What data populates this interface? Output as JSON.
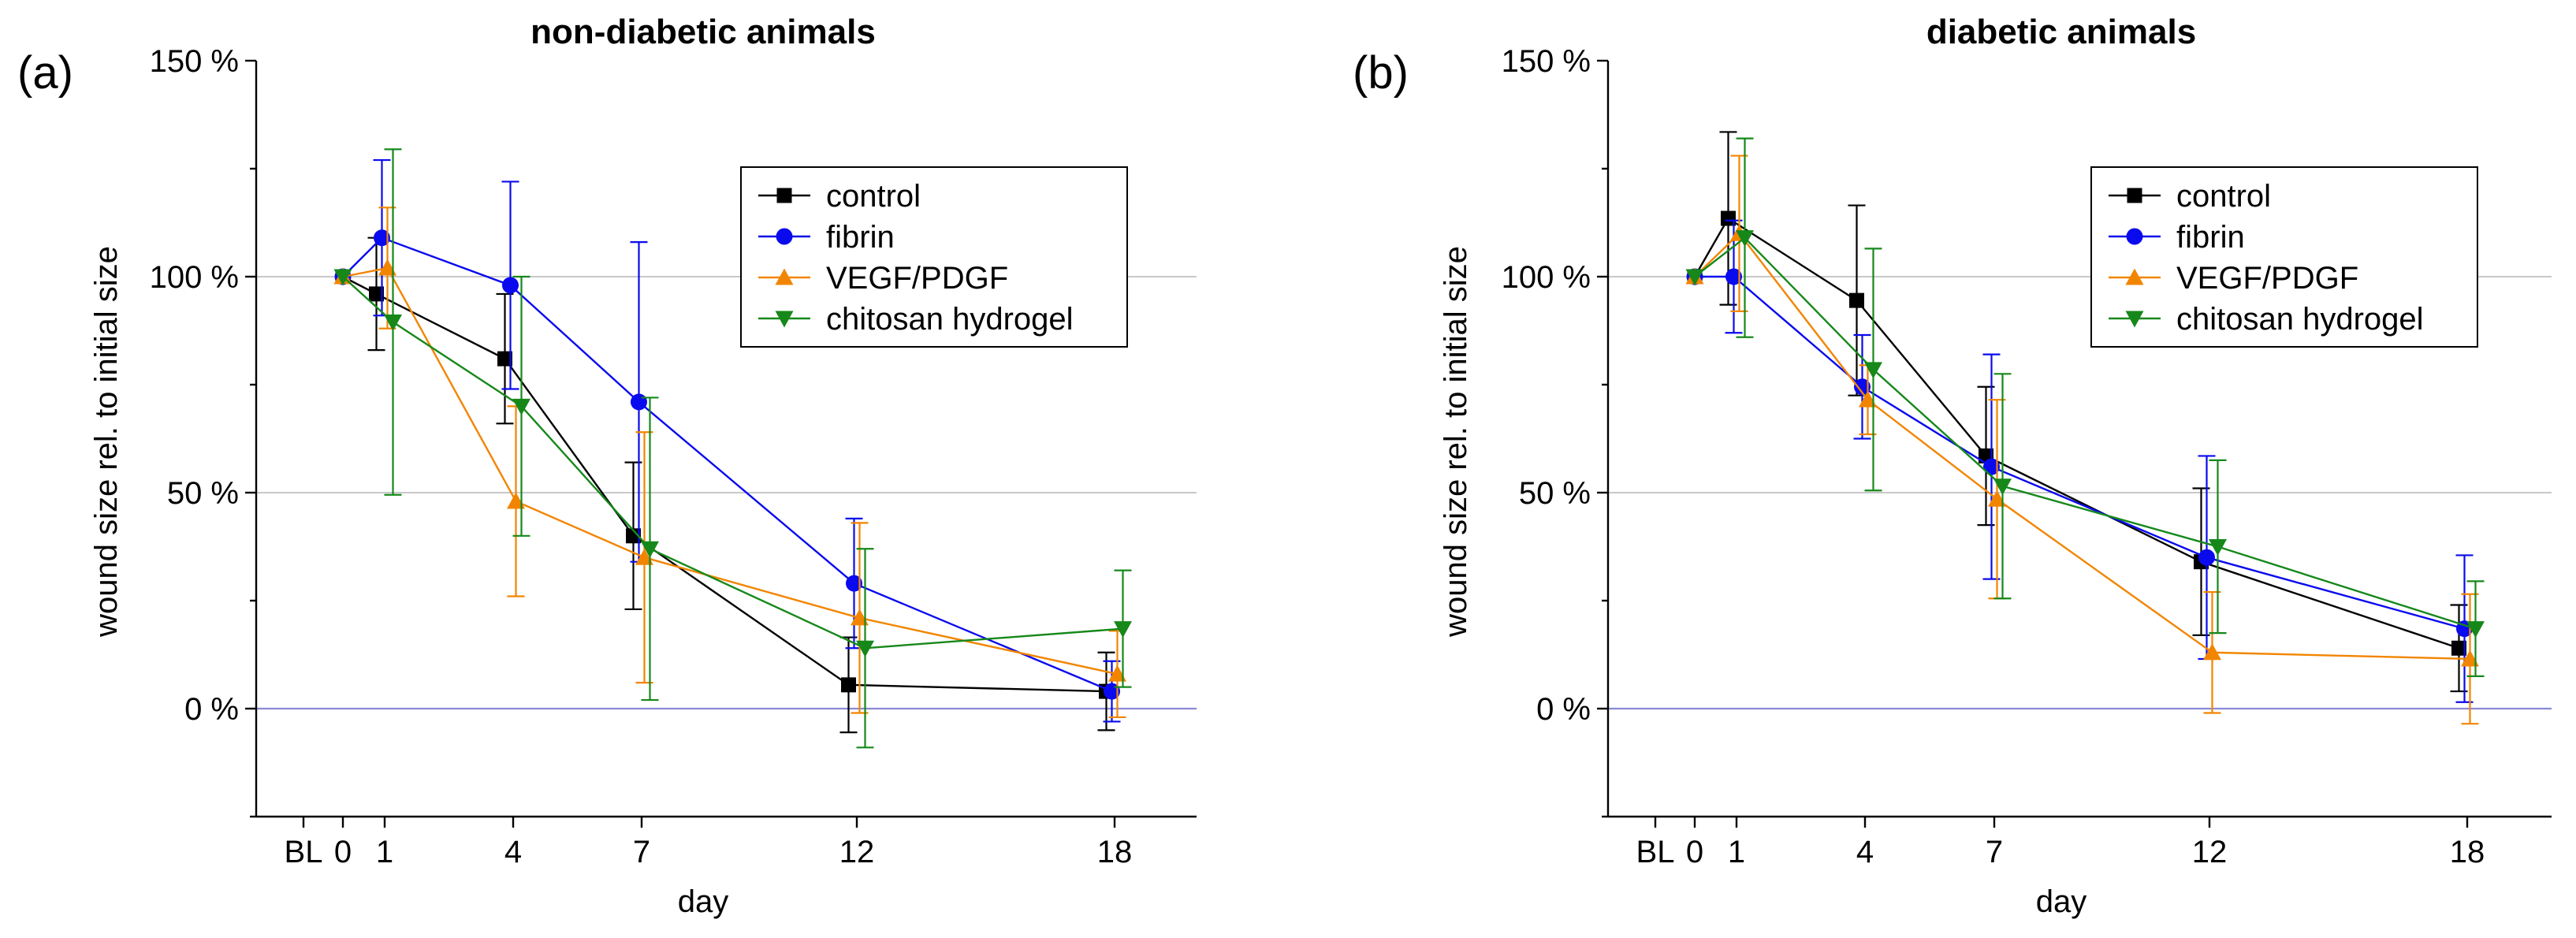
{
  "chart_data": [
    {
      "type": "line",
      "panel_label": "(a)",
      "title": "non-diabetic animals",
      "xlabel": "day",
      "ylabel": "wound size rel. to initial size",
      "x_categories": [
        "BL",
        "0",
        "1",
        "4",
        "7",
        "12",
        "18"
      ],
      "y_ticks": [
        "150 %",
        "100 %",
        "50 %",
        "0 %"
      ],
      "y_tick_values": [
        150,
        100,
        50,
        0
      ],
      "ylim": [
        -25,
        150
      ],
      "legend": {
        "position": "top-right"
      },
      "series": [
        {
          "name": "control",
          "color": "#000000",
          "marker": "square",
          "x": [
            0,
            1,
            4,
            7,
            12,
            18
          ],
          "y": [
            100,
            96,
            81,
            40,
            5.5,
            4
          ],
          "err": [
            0,
            13,
            15,
            17,
            11,
            9
          ]
        },
        {
          "name": "fibrin",
          "color": "#0a0aee",
          "marker": "circle",
          "x": [
            0,
            1,
            4,
            7,
            12,
            18
          ],
          "y": [
            100,
            109,
            98,
            71,
            29,
            4
          ],
          "err": [
            0,
            18,
            24,
            37,
            15,
            7
          ]
        },
        {
          "name": "VEGF/PDGF",
          "color": "#f28500",
          "marker": "triangle-up",
          "x": [
            0,
            1,
            4,
            7,
            12,
            18
          ],
          "y": [
            100,
            102,
            48,
            35,
            21,
            8
          ],
          "err": [
            0,
            14,
            22,
            29,
            22,
            10
          ]
        },
        {
          "name": "chitosan hydrogel",
          "color": "#16881a",
          "marker": "triangle-down",
          "x": [
            0,
            1,
            4,
            7,
            12,
            18
          ],
          "y": [
            100,
            89.5,
            70,
            37,
            14,
            18.5
          ],
          "err": [
            0,
            40,
            30,
            35,
            23,
            13.5
          ]
        }
      ]
    },
    {
      "type": "line",
      "panel_label": "(b)",
      "title": "diabetic animals",
      "xlabel": "day",
      "ylabel": "wound size rel. to initial size",
      "x_categories": [
        "BL",
        "0",
        "1",
        "4",
        "7",
        "12",
        "18"
      ],
      "y_ticks": [
        "150 %",
        "100 %",
        "50 %",
        "0 %"
      ],
      "y_tick_values": [
        150,
        100,
        50,
        0
      ],
      "ylim": [
        -25,
        150
      ],
      "legend": {
        "position": "top-right"
      },
      "series": [
        {
          "name": "control",
          "color": "#000000",
          "marker": "square",
          "x": [
            0,
            1,
            4,
            7,
            12,
            18
          ],
          "y": [
            100,
            113.5,
            94.5,
            58.5,
            34,
            14
          ],
          "err": [
            0,
            20,
            22,
            16,
            17,
            10
          ]
        },
        {
          "name": "fibrin",
          "color": "#0a0aee",
          "marker": "circle",
          "x": [
            0,
            1,
            4,
            7,
            12,
            18
          ],
          "y": [
            100,
            100,
            74.5,
            56,
            35,
            18.5
          ],
          "err": [
            0,
            13,
            12,
            26,
            23.5,
            17
          ]
        },
        {
          "name": "VEGF/PDGF",
          "color": "#f28500",
          "marker": "triangle-up",
          "x": [
            0,
            1,
            4,
            7,
            12,
            18
          ],
          "y": [
            100,
            110,
            71.5,
            48.5,
            13,
            11.5
          ],
          "err": [
            0,
            18,
            8,
            23,
            14,
            15
          ]
        },
        {
          "name": "chitosan hydrogel",
          "color": "#16881a",
          "marker": "triangle-down",
          "x": [
            0,
            1,
            4,
            7,
            12,
            18
          ],
          "y": [
            100,
            109,
            78.5,
            51.5,
            37.5,
            18.5
          ],
          "err": [
            0,
            23,
            28,
            26,
            20,
            11
          ]
        }
      ]
    }
  ]
}
